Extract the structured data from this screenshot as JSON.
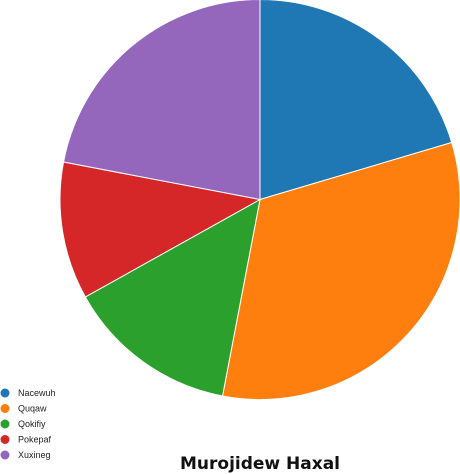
{
  "chart_data": {
    "type": "pie",
    "title": "Murojidew Haxal",
    "legend_position": "bottom-left",
    "start_angle": "top",
    "direction": "clockwise",
    "slices": [
      {
        "label": "Nacewuh",
        "value": 20.4,
        "color": "#1f77b4"
      },
      {
        "label": "Quqaw",
        "value": 32.6,
        "color": "#ff7f0e"
      },
      {
        "label": "Qokifiy",
        "value": 13.9,
        "color": "#2ca02c"
      },
      {
        "label": "Pokepaf",
        "value": 11.1,
        "color": "#d62728"
      },
      {
        "label": "Xuxineg",
        "value": 22.0,
        "color": "#9467bd"
      }
    ]
  }
}
